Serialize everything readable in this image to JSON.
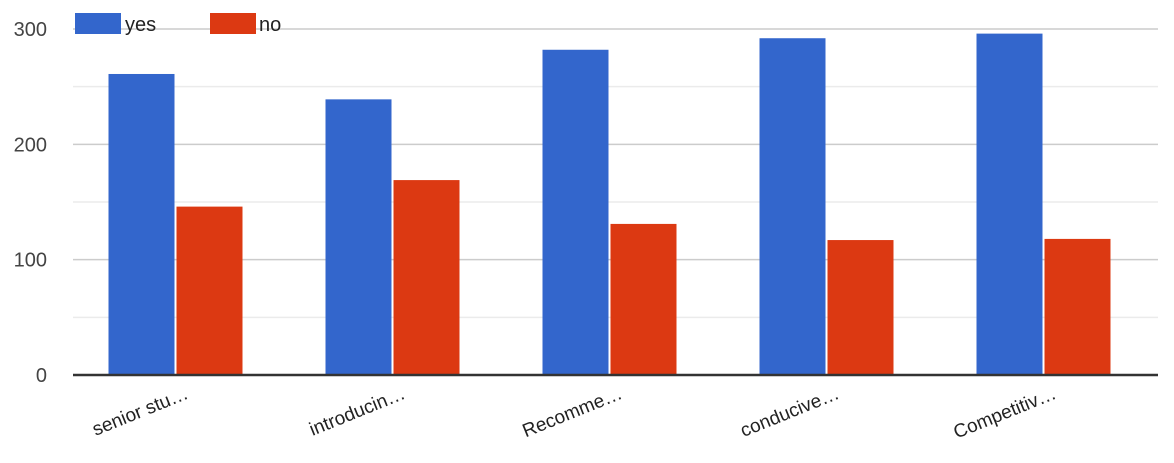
{
  "chart_data": {
    "type": "bar",
    "title": "",
    "xlabel": "",
    "ylabel": "",
    "categories": [
      "senior stu…",
      "introducin…",
      "Recomme…",
      "conducive…",
      "Competitiv…"
    ],
    "series": [
      {
        "name": "yes",
        "color": "#3366cc",
        "values": [
          261,
          239,
          282,
          292,
          296
        ]
      },
      {
        "name": "no",
        "color": "#dc3912",
        "values": [
          146,
          169,
          131,
          117,
          118
        ]
      }
    ],
    "ylim": [
      0,
      300
    ],
    "yticks": [
      0,
      100,
      200,
      300
    ],
    "yticks_labels": [
      "0",
      "100",
      "200",
      "300"
    ],
    "minor_gridlines": true,
    "legend_position": "top-left"
  }
}
